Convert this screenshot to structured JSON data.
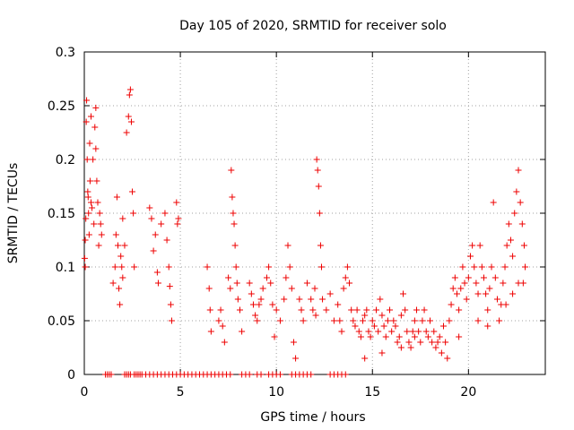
{
  "chart_data": {
    "type": "scatter",
    "title": "Day 105 of 2020, SRMTID for receiver solo",
    "xlabel": "GPS time / hours",
    "ylabel": "SRMTID / TECUs",
    "xlim": [
      0,
      24
    ],
    "ylim": [
      0,
      0.3
    ],
    "x_ticks": [
      0,
      5,
      10,
      15,
      20
    ],
    "x_tick_labels": [
      "0",
      "5",
      "10",
      "15",
      "20"
    ],
    "y_ticks": [
      0,
      0.05,
      0.1,
      0.15,
      0.2,
      0.25,
      0.3
    ],
    "y_tick_labels": [
      "0",
      "0.05",
      "0.1",
      "0.15",
      "0.2",
      "0.25",
      "0.3"
    ],
    "grid": true,
    "marker": "plus",
    "color": "#ee0000",
    "series": [
      {
        "name": "SRMTID",
        "points": [
          [
            0.02,
            0.108
          ],
          [
            0.05,
            0.125
          ],
          [
            0.08,
            0.145
          ],
          [
            0.1,
            0.235
          ],
          [
            0.12,
            0.255
          ],
          [
            0.15,
            0.2
          ],
          [
            0.18,
            0.17
          ],
          [
            0.2,
            0.165
          ],
          [
            0.22,
            0.15
          ],
          [
            0.25,
            0.13
          ],
          [
            0.28,
            0.215
          ],
          [
            0.3,
            0.18
          ],
          [
            0.35,
            0.16
          ],
          [
            0.4,
            0.155
          ],
          [
            0.45,
            0.2
          ],
          [
            0.5,
            0.14
          ],
          [
            0.55,
            0.23
          ],
          [
            0.6,
            0.21
          ],
          [
            0.65,
            0.18
          ],
          [
            0.7,
            0.16
          ],
          [
            0.75,
            0.12
          ],
          [
            0.8,
            0.15
          ],
          [
            0.85,
            0.14
          ],
          [
            0.9,
            0.13
          ],
          [
            0.05,
            0.1
          ],
          [
            0.35,
            0.24
          ],
          [
            0.6,
            0.248
          ],
          [
            1.5,
            0.085
          ],
          [
            1.6,
            0.1
          ],
          [
            1.65,
            0.13
          ],
          [
            1.7,
            0.165
          ],
          [
            1.75,
            0.12
          ],
          [
            1.8,
            0.08
          ],
          [
            1.85,
            0.065
          ],
          [
            1.9,
            0.11
          ],
          [
            1.95,
            0.1
          ],
          [
            2.0,
            0.09
          ],
          [
            2.1,
            0.12
          ],
          [
            2.0,
            0.145
          ],
          [
            2.2,
            0.225
          ],
          [
            2.3,
            0.24
          ],
          [
            2.35,
            0.26
          ],
          [
            2.4,
            0.265
          ],
          [
            2.45,
            0.235
          ],
          [
            2.5,
            0.17
          ],
          [
            2.55,
            0.15
          ],
          [
            2.6,
            0.1
          ],
          [
            3.4,
            0.155
          ],
          [
            3.5,
            0.145
          ],
          [
            3.6,
            0.115
          ],
          [
            3.7,
            0.13
          ],
          [
            3.8,
            0.095
          ],
          [
            3.85,
            0.085
          ],
          [
            4.0,
            0.14
          ],
          [
            4.2,
            0.15
          ],
          [
            4.3,
            0.125
          ],
          [
            4.4,
            0.1
          ],
          [
            4.45,
            0.082
          ],
          [
            4.5,
            0.065
          ],
          [
            4.55,
            0.05
          ],
          [
            4.8,
            0.16
          ],
          [
            4.85,
            0.14
          ],
          [
            4.9,
            0.145
          ],
          [
            6.4,
            0.1
          ],
          [
            6.5,
            0.08
          ],
          [
            6.55,
            0.06
          ],
          [
            6.6,
            0.04
          ],
          [
            7.0,
            0.05
          ],
          [
            7.1,
            0.06
          ],
          [
            7.2,
            0.045
          ],
          [
            7.3,
            0.03
          ],
          [
            7.5,
            0.09
          ],
          [
            7.6,
            0.08
          ],
          [
            7.65,
            0.19
          ],
          [
            7.7,
            0.165
          ],
          [
            7.75,
            0.15
          ],
          [
            7.8,
            0.14
          ],
          [
            7.85,
            0.12
          ],
          [
            7.9,
            0.1
          ],
          [
            7.95,
            0.085
          ],
          [
            8.0,
            0.07
          ],
          [
            8.1,
            0.06
          ],
          [
            8.2,
            0.04
          ],
          [
            8.6,
            0.085
          ],
          [
            8.7,
            0.075
          ],
          [
            8.8,
            0.065
          ],
          [
            8.9,
            0.055
          ],
          [
            9.0,
            0.05
          ],
          [
            9.1,
            0.065
          ],
          [
            9.2,
            0.07
          ],
          [
            9.3,
            0.08
          ],
          [
            9.5,
            0.09
          ],
          [
            9.6,
            0.1
          ],
          [
            9.7,
            0.085
          ],
          [
            9.8,
            0.065
          ],
          [
            9.9,
            0.035
          ],
          [
            10.0,
            0.06
          ],
          [
            10.2,
            0.05
          ],
          [
            10.4,
            0.07
          ],
          [
            10.5,
            0.09
          ],
          [
            10.6,
            0.12
          ],
          [
            10.7,
            0.1
          ],
          [
            10.8,
            0.08
          ],
          [
            10.9,
            0.03
          ],
          [
            11.0,
            0.015
          ],
          [
            11.2,
            0.07
          ],
          [
            11.3,
            0.06
          ],
          [
            11.4,
            0.05
          ],
          [
            11.6,
            0.085
          ],
          [
            11.8,
            0.07
          ],
          [
            11.9,
            0.06
          ],
          [
            12.0,
            0.08
          ],
          [
            12.05,
            0.055
          ],
          [
            12.1,
            0.2
          ],
          [
            12.15,
            0.19
          ],
          [
            12.2,
            0.175
          ],
          [
            12.25,
            0.15
          ],
          [
            12.3,
            0.12
          ],
          [
            12.35,
            0.1
          ],
          [
            12.4,
            0.07
          ],
          [
            12.6,
            0.06
          ],
          [
            12.8,
            0.075
          ],
          [
            13.0,
            0.05
          ],
          [
            13.2,
            0.065
          ],
          [
            13.3,
            0.05
          ],
          [
            13.4,
            0.04
          ],
          [
            13.5,
            0.08
          ],
          [
            13.6,
            0.09
          ],
          [
            13.7,
            0.1
          ],
          [
            13.8,
            0.085
          ],
          [
            13.9,
            0.06
          ],
          [
            14.0,
            0.05
          ],
          [
            14.1,
            0.045
          ],
          [
            14.2,
            0.06
          ],
          [
            14.3,
            0.04
          ],
          [
            14.4,
            0.035
          ],
          [
            14.5,
            0.05
          ],
          [
            14.6,
            0.055
          ],
          [
            14.7,
            0.06
          ],
          [
            14.8,
            0.04
          ],
          [
            14.9,
            0.035
          ],
          [
            15.0,
            0.05
          ],
          [
            15.1,
            0.045
          ],
          [
            15.2,
            0.06
          ],
          [
            15.3,
            0.04
          ],
          [
            15.4,
            0.07
          ],
          [
            15.5,
            0.055
          ],
          [
            15.6,
            0.045
          ],
          [
            15.7,
            0.035
          ],
          [
            15.8,
            0.05
          ],
          [
            15.9,
            0.06
          ],
          [
            16.0,
            0.04
          ],
          [
            16.1,
            0.05
          ],
          [
            16.2,
            0.045
          ],
          [
            16.3,
            0.03
          ],
          [
            16.4,
            0.035
          ],
          [
            16.5,
            0.055
          ],
          [
            16.6,
            0.075
          ],
          [
            16.7,
            0.06
          ],
          [
            16.8,
            0.04
          ],
          [
            16.9,
            0.03
          ],
          [
            17.0,
            0.025
          ],
          [
            17.1,
            0.04
          ],
          [
            17.2,
            0.05
          ],
          [
            17.3,
            0.06
          ],
          [
            17.4,
            0.04
          ],
          [
            17.5,
            0.03
          ],
          [
            17.6,
            0.05
          ],
          [
            17.7,
            0.06
          ],
          [
            17.8,
            0.04
          ],
          [
            17.9,
            0.035
          ],
          [
            18.0,
            0.05
          ],
          [
            18.1,
            0.03
          ],
          [
            18.2,
            0.04
          ],
          [
            18.3,
            0.025
          ],
          [
            18.4,
            0.03
          ],
          [
            18.5,
            0.035
          ],
          [
            18.6,
            0.02
          ],
          [
            18.7,
            0.045
          ],
          [
            18.8,
            0.03
          ],
          [
            18.9,
            0.015
          ],
          [
            19.0,
            0.05
          ],
          [
            19.1,
            0.065
          ],
          [
            19.2,
            0.08
          ],
          [
            19.3,
            0.09
          ],
          [
            19.4,
            0.075
          ],
          [
            19.5,
            0.06
          ],
          [
            19.6,
            0.08
          ],
          [
            19.7,
            0.1
          ],
          [
            19.8,
            0.085
          ],
          [
            19.9,
            0.07
          ],
          [
            20.0,
            0.09
          ],
          [
            20.1,
            0.11
          ],
          [
            20.2,
            0.12
          ],
          [
            20.3,
            0.1
          ],
          [
            20.4,
            0.085
          ],
          [
            20.5,
            0.075
          ],
          [
            20.6,
            0.12
          ],
          [
            20.7,
            0.1
          ],
          [
            20.8,
            0.09
          ],
          [
            20.9,
            0.075
          ],
          [
            21.0,
            0.06
          ],
          [
            21.1,
            0.08
          ],
          [
            21.2,
            0.1
          ],
          [
            21.3,
            0.16
          ],
          [
            21.4,
            0.09
          ],
          [
            21.5,
            0.07
          ],
          [
            21.6,
            0.05
          ],
          [
            21.7,
            0.065
          ],
          [
            21.8,
            0.085
          ],
          [
            21.9,
            0.1
          ],
          [
            22.0,
            0.12
          ],
          [
            22.1,
            0.14
          ],
          [
            22.2,
            0.125
          ],
          [
            22.3,
            0.11
          ],
          [
            22.4,
            0.15
          ],
          [
            22.5,
            0.17
          ],
          [
            22.6,
            0.19
          ],
          [
            22.7,
            0.16
          ],
          [
            22.8,
            0.14
          ],
          [
            22.9,
            0.12
          ],
          [
            22.95,
            0.1
          ],
          [
            22.85,
            0.085
          ],
          [
            22.6,
            0.085
          ],
          [
            22.3,
            0.075
          ],
          [
            21.95,
            0.065
          ],
          [
            21.0,
            0.045
          ],
          [
            20.5,
            0.05
          ],
          [
            19.5,
            0.035
          ],
          [
            16.5,
            0.025
          ],
          [
            15.5,
            0.02
          ],
          [
            14.6,
            0.015
          ],
          [
            17.2,
            0.035
          ],
          [
            1.1,
            0.0
          ],
          [
            1.2,
            0.0
          ],
          [
            1.3,
            0.0
          ],
          [
            1.4,
            0.0
          ],
          [
            2.1,
            0.0
          ],
          [
            2.2,
            0.0
          ],
          [
            2.3,
            0.0
          ],
          [
            2.4,
            0.0
          ],
          [
            2.6,
            0.0
          ],
          [
            2.7,
            0.0
          ],
          [
            2.8,
            0.0
          ],
          [
            2.9,
            0.0
          ],
          [
            3.0,
            0.0
          ],
          [
            3.2,
            0.0
          ],
          [
            3.4,
            0.0
          ],
          [
            3.6,
            0.0
          ],
          [
            3.8,
            0.0
          ],
          [
            4.0,
            0.0
          ],
          [
            4.2,
            0.0
          ],
          [
            4.4,
            0.0
          ],
          [
            4.6,
            0.0
          ],
          [
            4.8,
            0.0
          ],
          [
            5.0,
            0.0
          ],
          [
            5.2,
            0.0
          ],
          [
            5.4,
            0.0
          ],
          [
            5.6,
            0.0
          ],
          [
            5.8,
            0.0
          ],
          [
            6.0,
            0.0
          ],
          [
            6.2,
            0.0
          ],
          [
            6.4,
            0.0
          ],
          [
            6.6,
            0.0
          ],
          [
            6.8,
            0.0
          ],
          [
            7.0,
            0.0
          ],
          [
            7.2,
            0.0
          ],
          [
            7.4,
            0.0
          ],
          [
            7.6,
            0.0
          ],
          [
            8.2,
            0.0
          ],
          [
            8.4,
            0.0
          ],
          [
            8.6,
            0.0
          ],
          [
            9.0,
            0.0
          ],
          [
            9.2,
            0.0
          ],
          [
            9.6,
            0.0
          ],
          [
            9.8,
            0.0
          ],
          [
            10.0,
            0.0
          ],
          [
            10.2,
            0.0
          ],
          [
            10.8,
            0.0
          ],
          [
            11.0,
            0.0
          ],
          [
            11.2,
            0.0
          ],
          [
            11.4,
            0.0
          ],
          [
            11.6,
            0.0
          ],
          [
            11.8,
            0.0
          ],
          [
            12.8,
            0.0
          ],
          [
            13.0,
            0.0
          ],
          [
            13.2,
            0.0
          ],
          [
            13.4,
            0.0
          ],
          [
            13.6,
            0.0
          ]
        ]
      }
    ]
  }
}
